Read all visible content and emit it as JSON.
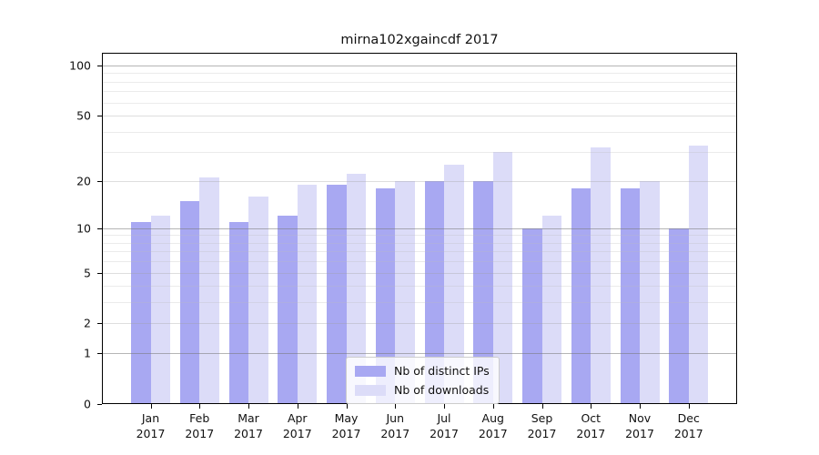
{
  "chart_data": {
    "type": "bar",
    "title": "mirna102xgaincdf 2017",
    "categories": [
      "Jan",
      "Feb",
      "Mar",
      "Apr",
      "May",
      "Jun",
      "Jul",
      "Aug",
      "Sep",
      "Oct",
      "Nov",
      "Dec"
    ],
    "x_tick_year": "2017",
    "series": [
      {
        "name": "Nb of distinct IPs",
        "color": "#a8a8f2",
        "values": [
          11,
          15,
          11,
          12,
          19,
          18,
          20,
          20,
          10,
          18,
          18,
          10
        ]
      },
      {
        "name": "Nb of downloads",
        "color": "#dcdcf8",
        "values": [
          12,
          21,
          16,
          19,
          22,
          20,
          25,
          30,
          12,
          32,
          20,
          33
        ]
      }
    ],
    "yscale": "log(1+x)",
    "ylim": [
      0,
      120
    ],
    "ytick_labels": [
      "100",
      "50",
      "20",
      "10",
      "5",
      "2",
      "1",
      "0"
    ],
    "ytick_values": [
      100,
      50,
      20,
      10,
      5,
      2,
      1,
      0
    ],
    "minor_grid_values": [
      3,
      4,
      6,
      7,
      8,
      9,
      30,
      40,
      60,
      70,
      80,
      90
    ],
    "grid": "on",
    "legend_position": "bottom-center",
    "colors": {
      "major_grid": "rgba(120,120,120,0.55)",
      "mid_grid": "rgba(160,160,160,0.35)",
      "minor_grid": "rgba(190,190,190,0.30)",
      "spine": "#000000",
      "background": "#ffffff"
    }
  }
}
